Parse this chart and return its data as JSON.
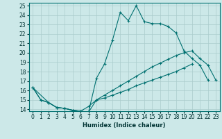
{
  "xlabel": "Humidex (Indice chaleur)",
  "bg_color": "#cce8e8",
  "line_color": "#007070",
  "grid_color": "#aacccc",
  "xlim": [
    -0.5,
    23.5
  ],
  "ylim": [
    13.8,
    25.3
  ],
  "xticks": [
    0,
    1,
    2,
    3,
    4,
    5,
    6,
    7,
    8,
    9,
    10,
    11,
    12,
    13,
    14,
    15,
    16,
    17,
    18,
    19,
    20,
    21,
    22,
    23
  ],
  "yticks": [
    14,
    15,
    16,
    17,
    18,
    19,
    20,
    21,
    22,
    23,
    24,
    25
  ],
  "s1x": [
    0,
    1,
    2,
    3,
    4,
    5,
    6,
    7,
    8,
    9,
    10,
    11,
    12,
    13,
    14,
    15,
    16,
    17,
    18,
    19,
    20,
    21,
    22
  ],
  "s1y": [
    16.3,
    15.0,
    14.7,
    14.2,
    14.1,
    13.9,
    13.8,
    13.7,
    17.3,
    18.8,
    21.3,
    24.3,
    23.4,
    25.0,
    23.3,
    23.1,
    23.1,
    22.8,
    22.1,
    20.2,
    19.4,
    18.7,
    17.1
  ],
  "s2x": [
    0,
    1,
    2,
    3,
    4,
    5,
    6,
    7,
    8,
    9,
    10,
    11,
    12,
    13,
    14,
    15,
    16,
    17,
    18,
    19,
    20
  ],
  "s2y": [
    16.3,
    15.0,
    14.7,
    14.2,
    14.1,
    13.9,
    13.8,
    14.3,
    15.0,
    15.2,
    15.5,
    15.8,
    16.1,
    16.5,
    16.8,
    17.1,
    17.4,
    17.7,
    18.0,
    18.4,
    18.8
  ],
  "s3x": [
    0,
    2,
    3,
    4,
    5,
    6,
    7,
    8,
    9,
    10,
    11,
    12,
    13,
    14,
    15,
    16,
    17,
    18,
    19,
    20,
    21,
    22,
    23
  ],
  "s3y": [
    16.3,
    14.7,
    14.2,
    14.1,
    13.9,
    13.8,
    13.7,
    15.0,
    15.5,
    16.0,
    16.5,
    17.0,
    17.5,
    18.0,
    18.5,
    18.9,
    19.3,
    19.7,
    20.0,
    20.2,
    19.4,
    18.7,
    17.1
  ],
  "tick_fontsize": 5.5,
  "xlabel_fontsize": 6.0
}
